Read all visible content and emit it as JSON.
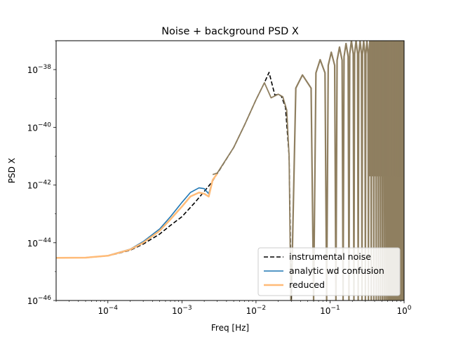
{
  "chart_data": {
    "type": "line",
    "title": "Noise + background PSD X",
    "xlabel": "Freq [Hz]",
    "ylabel": "PSD X",
    "xscale": "log",
    "yscale": "log",
    "xlim": [
      2e-05,
      1
    ],
    "ylim": [
      1e-46,
      1e-37
    ],
    "x_ticks": [
      {
        "value": 0.0001,
        "base": "10",
        "exp": "−4"
      },
      {
        "value": 0.001,
        "base": "10",
        "exp": "−3"
      },
      {
        "value": 0.01,
        "base": "10",
        "exp": "−2"
      },
      {
        "value": 0.1,
        "base": "10",
        "exp": "−1"
      },
      {
        "value": 1,
        "base": "10",
        "exp": "0"
      }
    ],
    "y_ticks": [
      {
        "value": 1e-46,
        "base": "10",
        "exp": "−46"
      },
      {
        "value": 1e-44,
        "base": "10",
        "exp": "−44"
      },
      {
        "value": 1e-42,
        "base": "10",
        "exp": "−42"
      },
      {
        "value": 1e-40,
        "base": "10",
        "exp": "−40"
      },
      {
        "value": 1e-38,
        "base": "10",
        "exp": "−38"
      }
    ],
    "grid": false,
    "legend_position": "lower-right",
    "series": [
      {
        "name": "instrumental noise",
        "color": "#000000",
        "style": "dashed",
        "x": [
          2e-05,
          5e-05,
          0.0001,
          0.0002,
          0.0003,
          0.0005,
          0.0007,
          0.001,
          0.0015,
          0.002,
          0.0025,
          0.003,
          0.005,
          0.007,
          0.01,
          0.013,
          0.015,
          0.018,
          0.02,
          0.022,
          0.025,
          0.028,
          0.03
        ],
        "y": [
          3e-45,
          3.05e-45,
          3.5e-45,
          5.5e-45,
          9e-45,
          2e-44,
          4e-44,
          8e-44,
          2.5e-43,
          6e-43,
          1.2e-42,
          2.5e-42,
          2e-41,
          1.2e-40,
          9e-40,
          3.5e-39,
          8e-39,
          1.3e-39,
          1.4e-39,
          1.2e-39,
          5e-40,
          1e-41,
          1e-46
        ]
      },
      {
        "name": "analytic wd confusion",
        "color": "#1f77b4",
        "style": "solid",
        "x": [
          2e-05,
          5e-05,
          0.0001,
          0.0002,
          0.0003,
          0.0005,
          0.0007,
          0.001,
          0.0013,
          0.0017,
          0.002,
          0.0023,
          0.0026,
          0.003
        ],
        "y": [
          3e-45,
          3.05e-45,
          3.6e-45,
          6e-45,
          1.1e-44,
          3e-44,
          8e-44,
          2.5e-43,
          5.5e-43,
          8e-43,
          7.5e-43,
          5e-43,
          1.5e-42,
          2.5e-42
        ]
      },
      {
        "name": "reduced",
        "color": "#ffbb78",
        "style": "solid",
        "x": [
          2e-05,
          5e-05,
          0.0001,
          0.0002,
          0.0003,
          0.0005,
          0.0007,
          0.001,
          0.0013,
          0.0017,
          0.002,
          0.0023,
          0.0026,
          0.003
        ],
        "y": [
          3e-45,
          3.05e-45,
          3.55e-45,
          5.8e-45,
          1e-44,
          2.6e-44,
          6.5e-44,
          1.8e-43,
          4e-43,
          5.5e-43,
          5e-43,
          4e-43,
          1.5e-42,
          2.5e-42
        ]
      }
    ],
    "high_frequency_nulls_hz": [
      0.03,
      0.06,
      0.09,
      0.12,
      0.15,
      0.18,
      0.21,
      0.24,
      0.27,
      0.3,
      0.33,
      0.36,
      0.39,
      0.42,
      0.45,
      0.48,
      0.51,
      0.54,
      0.57,
      0.6,
      0.63,
      0.66,
      0.69,
      0.72,
      0.75,
      0.78,
      0.81,
      0.84,
      0.87,
      0.9,
      0.93,
      0.96,
      0.99
    ],
    "high_frequency_peaks": [
      {
        "x": 0.045,
        "y": 6.5e-39
      },
      {
        "x": 0.075,
        "y": 2.2e-38
      },
      {
        "x": 0.105,
        "y": 4e-38
      },
      {
        "x": 0.135,
        "y": 6e-38
      },
      {
        "x": 0.165,
        "y": 8e-38
      },
      {
        "x": 0.2,
        "y": 1e-37
      },
      {
        "x": 0.3,
        "y": 1e-37
      },
      {
        "x": 0.5,
        "y": 1e-37
      },
      {
        "x": 0.8,
        "y": 1e-37
      }
    ],
    "blend_color": "#8f7f60"
  }
}
